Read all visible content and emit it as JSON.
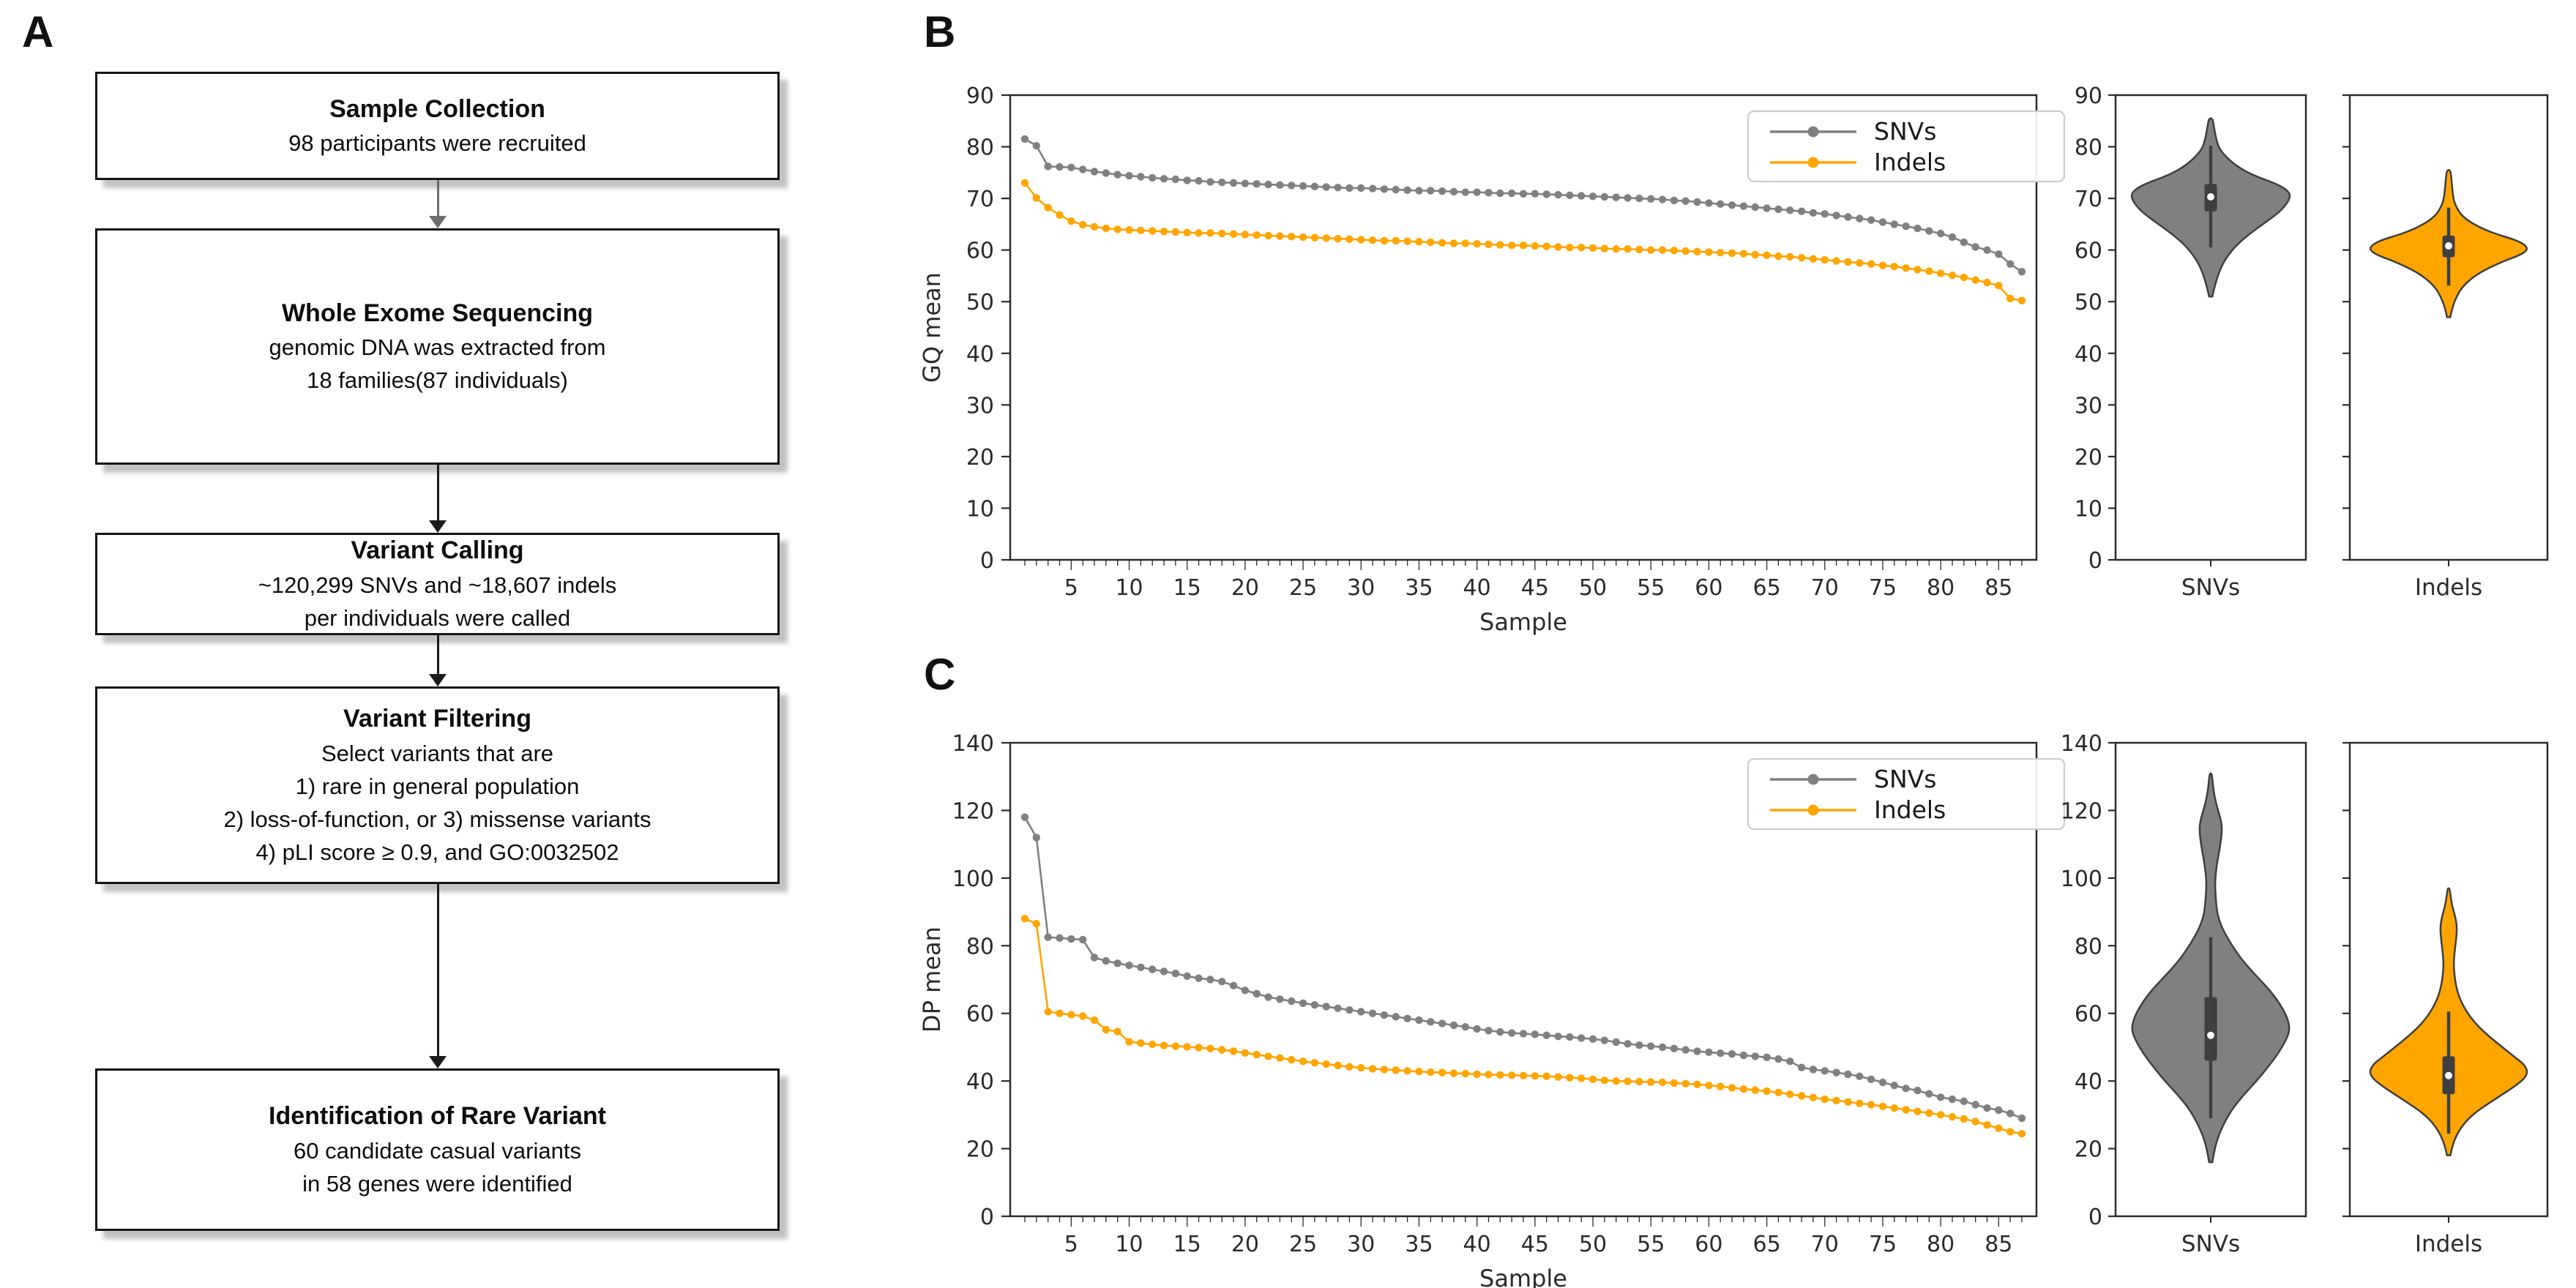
{
  "figure": {
    "panel_labels": {
      "a": "A",
      "b": "B",
      "c": "C"
    }
  },
  "flowchart": {
    "boxes": [
      {
        "title": "Sample Collection",
        "body": "98 participants were recruited"
      },
      {
        "title": "Whole Exome Sequencing",
        "body": "genomic DNA was extracted from\n18 families(87 individuals)"
      },
      {
        "title": "Variant Calling",
        "body": "~120,299 SNVs and ~18,607 indels\nper individuals were called"
      },
      {
        "title": "Variant Filtering",
        "body": "Select variants that are\n1) rare in general population\n2) loss-of-function, or 3) missense variants\n4) pLI score ≥ 0.9, and GO:0032502"
      },
      {
        "title": "Identification of Rare Variant",
        "body": "60 candidate casual variants\nin 58 genes were identified"
      }
    ]
  },
  "chart_data": [
    {
      "id": "B",
      "type": "line",
      "title": "",
      "xlabel": "Sample",
      "ylabel": "GQ mean",
      "ylim": [
        0,
        90
      ],
      "ytick_step": 10,
      "n_samples": 87,
      "x_ticks": [
        5,
        10,
        15,
        20,
        25,
        30,
        35,
        40,
        45,
        50,
        55,
        60,
        65,
        70,
        75,
        80,
        85
      ],
      "grid": false,
      "legend_position": "upper right",
      "series": [
        {
          "name": "SNVs",
          "color": "#808080",
          "values": [
            81.5,
            80.2,
            76.2,
            76.1,
            76.0,
            75.6,
            75.2,
            74.9,
            74.6,
            74.4,
            74.2,
            74.0,
            73.8,
            73.7,
            73.5,
            73.4,
            73.2,
            73.1,
            73.0,
            72.9,
            72.8,
            72.7,
            72.6,
            72.5,
            72.4,
            72.3,
            72.2,
            72.1,
            72.0,
            72.0,
            71.9,
            71.8,
            71.7,
            71.6,
            71.5,
            71.5,
            71.4,
            71.3,
            71.2,
            71.2,
            71.1,
            71.0,
            71.0,
            70.9,
            70.9,
            70.8,
            70.7,
            70.6,
            70.5,
            70.4,
            70.3,
            70.2,
            70.1,
            70.0,
            69.9,
            69.8,
            69.6,
            69.5,
            69.3,
            69.1,
            68.9,
            68.7,
            68.5,
            68.3,
            68.1,
            67.9,
            67.7,
            67.5,
            67.2,
            67.0,
            66.7,
            66.4,
            66.1,
            65.8,
            65.4,
            65.0,
            64.6,
            64.2,
            63.7,
            63.2,
            62.5,
            61.5,
            60.6,
            60.0,
            59.2,
            57.3,
            55.8
          ]
        },
        {
          "name": "Indels",
          "color": "#FFA500",
          "values": [
            73.0,
            70.1,
            68.2,
            66.8,
            65.6,
            64.9,
            64.5,
            64.2,
            64.0,
            63.9,
            63.8,
            63.7,
            63.6,
            63.5,
            63.4,
            63.3,
            63.3,
            63.2,
            63.1,
            63.0,
            62.9,
            62.8,
            62.7,
            62.6,
            62.5,
            62.4,
            62.3,
            62.2,
            62.1,
            62.0,
            61.9,
            61.8,
            61.8,
            61.7,
            61.6,
            61.5,
            61.4,
            61.3,
            61.3,
            61.2,
            61.1,
            61.0,
            60.9,
            60.9,
            60.8,
            60.7,
            60.6,
            60.5,
            60.5,
            60.4,
            60.3,
            60.2,
            60.2,
            60.1,
            60.0,
            60.0,
            59.9,
            59.8,
            59.7,
            59.6,
            59.5,
            59.4,
            59.3,
            59.1,
            59.0,
            58.8,
            58.7,
            58.5,
            58.3,
            58.1,
            57.9,
            57.7,
            57.5,
            57.3,
            57.0,
            56.8,
            56.5,
            56.2,
            55.9,
            55.5,
            55.1,
            54.7,
            54.2,
            53.7,
            53.1,
            50.6,
            50.2
          ]
        }
      ],
      "violins": [
        {
          "name": "SNVs",
          "color": "#808080",
          "shape": [
            [
              51,
              0.02
            ],
            [
              53,
              0.05
            ],
            [
              55,
              0.09
            ],
            [
              57,
              0.14
            ],
            [
              59,
              0.22
            ],
            [
              61,
              0.33
            ],
            [
              63,
              0.48
            ],
            [
              65,
              0.66
            ],
            [
              67,
              0.84
            ],
            [
              68.5,
              0.94
            ],
            [
              70,
              1.0
            ],
            [
              71,
              1.0
            ],
            [
              72,
              0.93
            ],
            [
              73,
              0.8
            ],
            [
              74,
              0.62
            ],
            [
              75,
              0.47
            ],
            [
              76,
              0.36
            ],
            [
              77,
              0.27
            ],
            [
              78,
              0.2
            ],
            [
              79,
              0.14
            ],
            [
              80,
              0.1
            ],
            [
              81.5,
              0.07
            ],
            [
              83,
              0.05
            ],
            [
              84.5,
              0.035
            ],
            [
              85.5,
              0.02
            ]
          ],
          "box": {
            "whisker_low": 60.5,
            "q1": 67.5,
            "median": 70.3,
            "q3": 72.8,
            "whisker_high": 80.2
          }
        },
        {
          "name": "Indels",
          "color": "#FFA500",
          "shape": [
            [
              47,
              0.02
            ],
            [
              49,
              0.05
            ],
            [
              51,
              0.1
            ],
            [
              53,
              0.18
            ],
            [
              55,
              0.33
            ],
            [
              56.5,
              0.5
            ],
            [
              58,
              0.72
            ],
            [
              59,
              0.9
            ],
            [
              60,
              1.0
            ],
            [
              61,
              0.97
            ],
            [
              62,
              0.84
            ],
            [
              63,
              0.62
            ],
            [
              64,
              0.45
            ],
            [
              65,
              0.32
            ],
            [
              66,
              0.22
            ],
            [
              67,
              0.15
            ],
            [
              68.5,
              0.09
            ],
            [
              70,
              0.06
            ],
            [
              72,
              0.045
            ],
            [
              74,
              0.035
            ],
            [
              75.5,
              0.02
            ]
          ],
          "box": {
            "whisker_low": 53.1,
            "q1": 58.6,
            "median": 60.8,
            "q3": 62.8,
            "whisker_high": 68.2
          }
        }
      ]
    },
    {
      "id": "C",
      "type": "line",
      "title": "",
      "xlabel": "Sample",
      "ylabel": "DP mean",
      "ylim": [
        0,
        140
      ],
      "ytick_step": 20,
      "n_samples": 87,
      "x_ticks": [
        5,
        10,
        15,
        20,
        25,
        30,
        35,
        40,
        45,
        50,
        55,
        60,
        65,
        70,
        75,
        80,
        85
      ],
      "grid": false,
      "legend_position": "upper right",
      "series": [
        {
          "name": "SNVs",
          "color": "#808080",
          "values": [
            118,
            112,
            82.5,
            82.3,
            82.0,
            81.8,
            76.5,
            75.5,
            74.8,
            74.2,
            73.6,
            73.0,
            72.4,
            71.8,
            71.0,
            70.4,
            70.0,
            69.4,
            68.2,
            66.8,
            65.8,
            64.8,
            64.2,
            63.6,
            63.0,
            62.5,
            62.0,
            61.5,
            61.0,
            60.5,
            60.0,
            59.5,
            59.0,
            58.5,
            58.0,
            57.5,
            57.0,
            56.5,
            56.0,
            55.4,
            54.9,
            54.5,
            54.2,
            54.0,
            53.8,
            53.5,
            53.2,
            53.0,
            52.7,
            52.4,
            52.0,
            51.5,
            51.0,
            50.6,
            50.3,
            50.0,
            49.6,
            49.2,
            48.8,
            48.5,
            48.2,
            48.0,
            47.6,
            47.3,
            47.0,
            46.5,
            45.8,
            44.0,
            43.4,
            43.0,
            42.5,
            42.0,
            41.4,
            40.5,
            39.6,
            38.7,
            37.8,
            37.2,
            36.2,
            35.2,
            34.6,
            34.0,
            33.0,
            32.0,
            31.4,
            30.4,
            29.0
          ]
        },
        {
          "name": "Indels",
          "color": "#FFA500",
          "values": [
            88.0,
            86.5,
            60.5,
            60.0,
            59.6,
            59.2,
            58.0,
            55.2,
            54.6,
            51.6,
            51.2,
            50.8,
            50.5,
            50.3,
            50.1,
            49.9,
            49.6,
            49.2,
            48.8,
            48.3,
            47.8,
            47.3,
            46.8,
            46.3,
            45.8,
            45.4,
            45.0,
            44.6,
            44.2,
            43.9,
            43.6,
            43.4,
            43.2,
            43.0,
            42.8,
            42.6,
            42.5,
            42.3,
            42.2,
            42.0,
            41.9,
            41.8,
            41.7,
            41.6,
            41.5,
            41.4,
            41.2,
            41.0,
            40.8,
            40.5,
            40.2,
            40.0,
            39.9,
            39.8,
            39.7,
            39.6,
            39.4,
            39.2,
            39.0,
            38.7,
            38.4,
            38.0,
            37.6,
            37.3,
            37.0,
            36.6,
            36.1,
            35.6,
            35.1,
            34.6,
            34.2,
            33.8,
            33.4,
            33.0,
            32.5,
            32.0,
            31.5,
            31.0,
            30.5,
            30.0,
            29.4,
            28.8,
            28.0,
            27.0,
            26.0,
            25.0,
            24.4
          ]
        }
      ],
      "violins": [
        {
          "name": "SNVs",
          "color": "#808080",
          "shape": [
            [
              16,
              0.02
            ],
            [
              20,
              0.05
            ],
            [
              24,
              0.1
            ],
            [
              28,
              0.18
            ],
            [
              32,
              0.28
            ],
            [
              36,
              0.42
            ],
            [
              40,
              0.58
            ],
            [
              44,
              0.72
            ],
            [
              48,
              0.85
            ],
            [
              52,
              0.95
            ],
            [
              55,
              1.0
            ],
            [
              58,
              0.98
            ],
            [
              61,
              0.92
            ],
            [
              64,
              0.84
            ],
            [
              67,
              0.74
            ],
            [
              70,
              0.62
            ],
            [
              73,
              0.5
            ],
            [
              76,
              0.39
            ],
            [
              79,
              0.3
            ],
            [
              82,
              0.22
            ],
            [
              85,
              0.15
            ],
            [
              88,
              0.1
            ],
            [
              91,
              0.075
            ],
            [
              95,
              0.06
            ],
            [
              99,
              0.055
            ],
            [
              103,
              0.07
            ],
            [
              107,
              0.1
            ],
            [
              111,
              0.13
            ],
            [
              115,
              0.145
            ],
            [
              118,
              0.12
            ],
            [
              121,
              0.08
            ],
            [
              124,
              0.05
            ],
            [
              127,
              0.03
            ],
            [
              131,
              0.015
            ]
          ],
          "box": {
            "whisker_low": 29,
            "q1": 46,
            "median": 53.5,
            "q3": 64.8,
            "whisker_high": 82.5
          }
        },
        {
          "name": "Indels",
          "color": "#FFA500",
          "shape": [
            [
              18,
              0.02
            ],
            [
              21,
              0.05
            ],
            [
              24,
              0.1
            ],
            [
              27,
              0.18
            ],
            [
              30,
              0.3
            ],
            [
              33,
              0.48
            ],
            [
              36,
              0.68
            ],
            [
              39,
              0.87
            ],
            [
              41,
              0.97
            ],
            [
              43,
              1.0
            ],
            [
              45,
              0.95
            ],
            [
              47,
              0.84
            ],
            [
              50,
              0.68
            ],
            [
              53,
              0.52
            ],
            [
              56,
              0.38
            ],
            [
              59,
              0.27
            ],
            [
              62,
              0.19
            ],
            [
              65,
              0.13
            ],
            [
              68,
              0.095
            ],
            [
              71,
              0.075
            ],
            [
              74,
              0.065
            ],
            [
              77,
              0.07
            ],
            [
              80,
              0.085
            ],
            [
              83,
              0.1
            ],
            [
              85.5,
              0.105
            ],
            [
              88,
              0.09
            ],
            [
              90.5,
              0.06
            ],
            [
              93,
              0.035
            ],
            [
              95.5,
              0.02
            ],
            [
              97,
              0.012
            ]
          ],
          "box": {
            "whisker_low": 24.4,
            "q1": 36.1,
            "median": 41.6,
            "q3": 47.3,
            "whisker_high": 60.5
          }
        }
      ]
    }
  ]
}
